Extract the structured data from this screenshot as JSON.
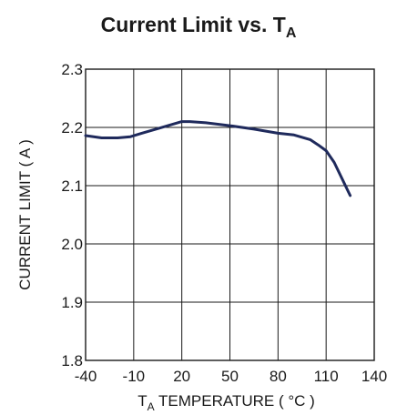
{
  "chart_data": {
    "type": "line",
    "title": "Current Limit  vs. T",
    "title_subscript": "A",
    "xlabel_prefix": "T",
    "xlabel_subscript": "A",
    "xlabel": " TEMPERATURE ( °C )",
    "ylabel": "CURRENT LIMIT ( A )",
    "xlim": [
      -40,
      140
    ],
    "ylim": [
      1.8,
      2.3
    ],
    "xticks": [
      -40,
      -10,
      20,
      50,
      80,
      110,
      140
    ],
    "yticks": [
      1.8,
      1.9,
      2.0,
      2.1,
      2.2,
      2.3
    ],
    "ytick_labels": [
      "1.8",
      "1.9",
      "2.0",
      "2.1",
      "2.2",
      "2.3"
    ],
    "grid": true,
    "series": [
      {
        "color": "#1f2a5c",
        "x": [
          -40,
          -30,
          -20,
          -12,
          -5,
          5,
          20,
          25,
          35,
          50,
          65,
          80,
          90,
          100,
          105,
          110,
          115,
          125
        ],
        "y": [
          2.186,
          2.182,
          2.182,
          2.184,
          2.19,
          2.198,
          2.21,
          2.21,
          2.208,
          2.203,
          2.197,
          2.19,
          2.187,
          2.179,
          2.17,
          2.16,
          2.14,
          2.083
        ]
      }
    ]
  }
}
